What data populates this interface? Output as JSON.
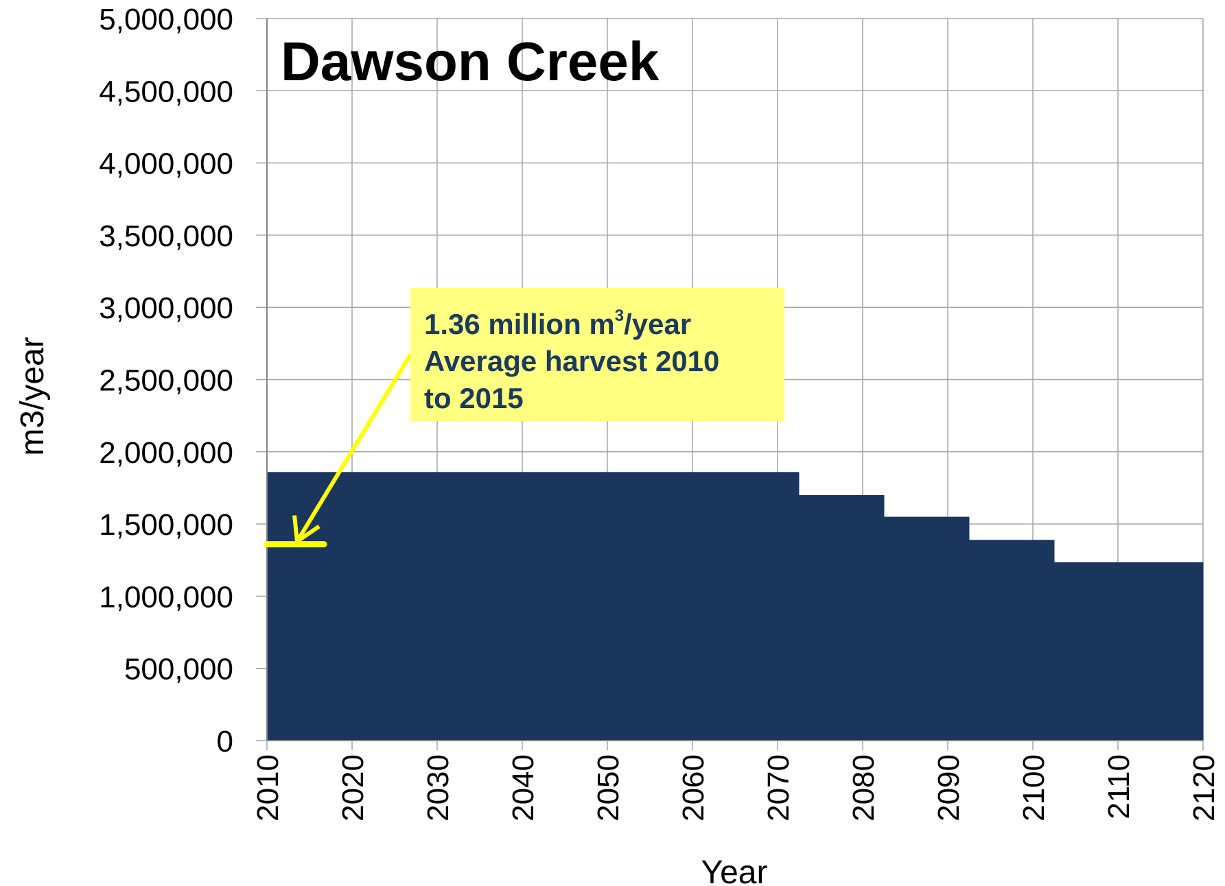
{
  "chart_data": {
    "type": "area",
    "title": "Dawson Creek",
    "xlabel": "Year",
    "ylabel": "m3/year",
    "xlim": [
      2010,
      2120
    ],
    "ylim": [
      0,
      5000000
    ],
    "x_ticks": [
      2010,
      2020,
      2030,
      2040,
      2050,
      2060,
      2070,
      2080,
      2090,
      2100,
      2110,
      2120
    ],
    "y_ticks": [
      0,
      500000,
      1000000,
      1500000,
      2000000,
      2500000,
      3000000,
      3500000,
      4000000,
      4500000,
      5000000
    ],
    "y_tick_labels": [
      "0",
      "500,000",
      "1,000,000",
      "1,500,000",
      "2,000,000",
      "2,500,000",
      "3,000,000",
      "3,500,000",
      "4,000,000",
      "4,500,000",
      "5,000,000"
    ],
    "x_tick_labels": [
      "2010",
      "2020",
      "2030",
      "2040",
      "2050",
      "2060",
      "2070",
      "2080",
      "2090",
      "2100",
      "2110",
      "2120"
    ],
    "grid": true,
    "series": [
      {
        "steps": [
          {
            "x_start": 2010,
            "x_end": 2072.5,
            "value": 1860000
          },
          {
            "x_start": 2072.5,
            "x_end": 2082.5,
            "value": 1700000
          },
          {
            "x_start": 2082.5,
            "x_end": 2092.5,
            "value": 1550000
          },
          {
            "x_start": 2092.5,
            "x_end": 2102.5,
            "value": 1390000
          },
          {
            "x_start": 2102.5,
            "x_end": 2120,
            "value": 1235000
          }
        ],
        "color": "#1b365d"
      }
    ],
    "annotation": {
      "line1_prefix": "1.36 million m",
      "line1_sup": "3",
      "line1_suffix": "/year",
      "line2": "Average harvest 2010",
      "line3": "to 2015",
      "value": 1360000,
      "x_start": 2010,
      "x_end": 2016.7,
      "box_color": "#ffff80",
      "arrow_color": "#ffff00",
      "text_color": "#1b3a5c"
    }
  }
}
